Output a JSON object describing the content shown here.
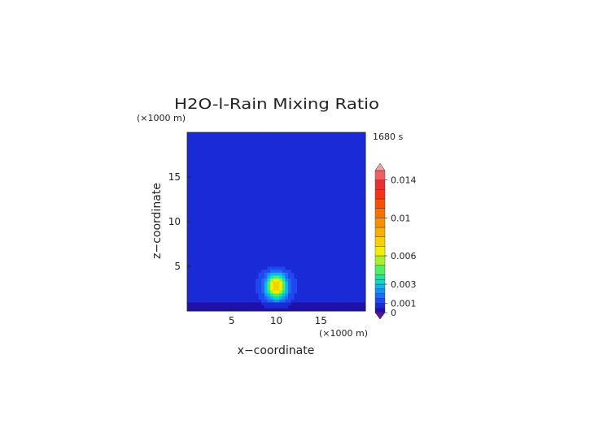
{
  "chart_data": {
    "type": "heatmap",
    "title": "H2O-l-Rain Mixing Ratio",
    "time_label": "1680 s",
    "xlabel": "x−coordinate",
    "ylabel": "z−coordinate",
    "x_unit": "(×1000 m)",
    "y_unit": "(×1000 m)",
    "xlim": [
      0,
      20
    ],
    "ylim": [
      0,
      20
    ],
    "x_ticks": [
      5,
      10,
      15
    ],
    "y_ticks": [
      5,
      10,
      15
    ],
    "background_value": 0.0005,
    "blob": {
      "x_center": 10,
      "core_z": 2.8,
      "notes": "rain shaft centered near x=10 km, z=1-4 km, peak ~0.006-0.007"
    },
    "colorbar": {
      "tick_values": [
        0,
        0.001,
        0.003,
        0.006,
        0.01,
        0.014
      ],
      "tick_labels": [
        "0",
        "0.001",
        "0.003",
        "0.006",
        "0.01",
        "0.014"
      ],
      "levels": [
        0,
        0.0005,
        0.001,
        0.0015,
        0.002,
        0.0025,
        0.003,
        0.0035,
        0.004,
        0.005,
        0.006,
        0.007,
        0.008,
        0.009,
        0.01,
        0.011,
        0.012,
        0.013,
        0.014,
        0.015
      ],
      "colors": [
        "#1e10a8",
        "#1a2bd6",
        "#2048f0",
        "#1f6af0",
        "#1690f2",
        "#10b4f0",
        "#12d6c8",
        "#18e89a",
        "#4cf060",
        "#a8f028",
        "#f0f000",
        "#f8d000",
        "#f8b000",
        "#f89000",
        "#f87000",
        "#f85000",
        "#f83018",
        "#e83030",
        "#f06060",
        "#f09898"
      ],
      "under_color": "#5a10a0",
      "over_color": "#f0a0a0"
    }
  }
}
